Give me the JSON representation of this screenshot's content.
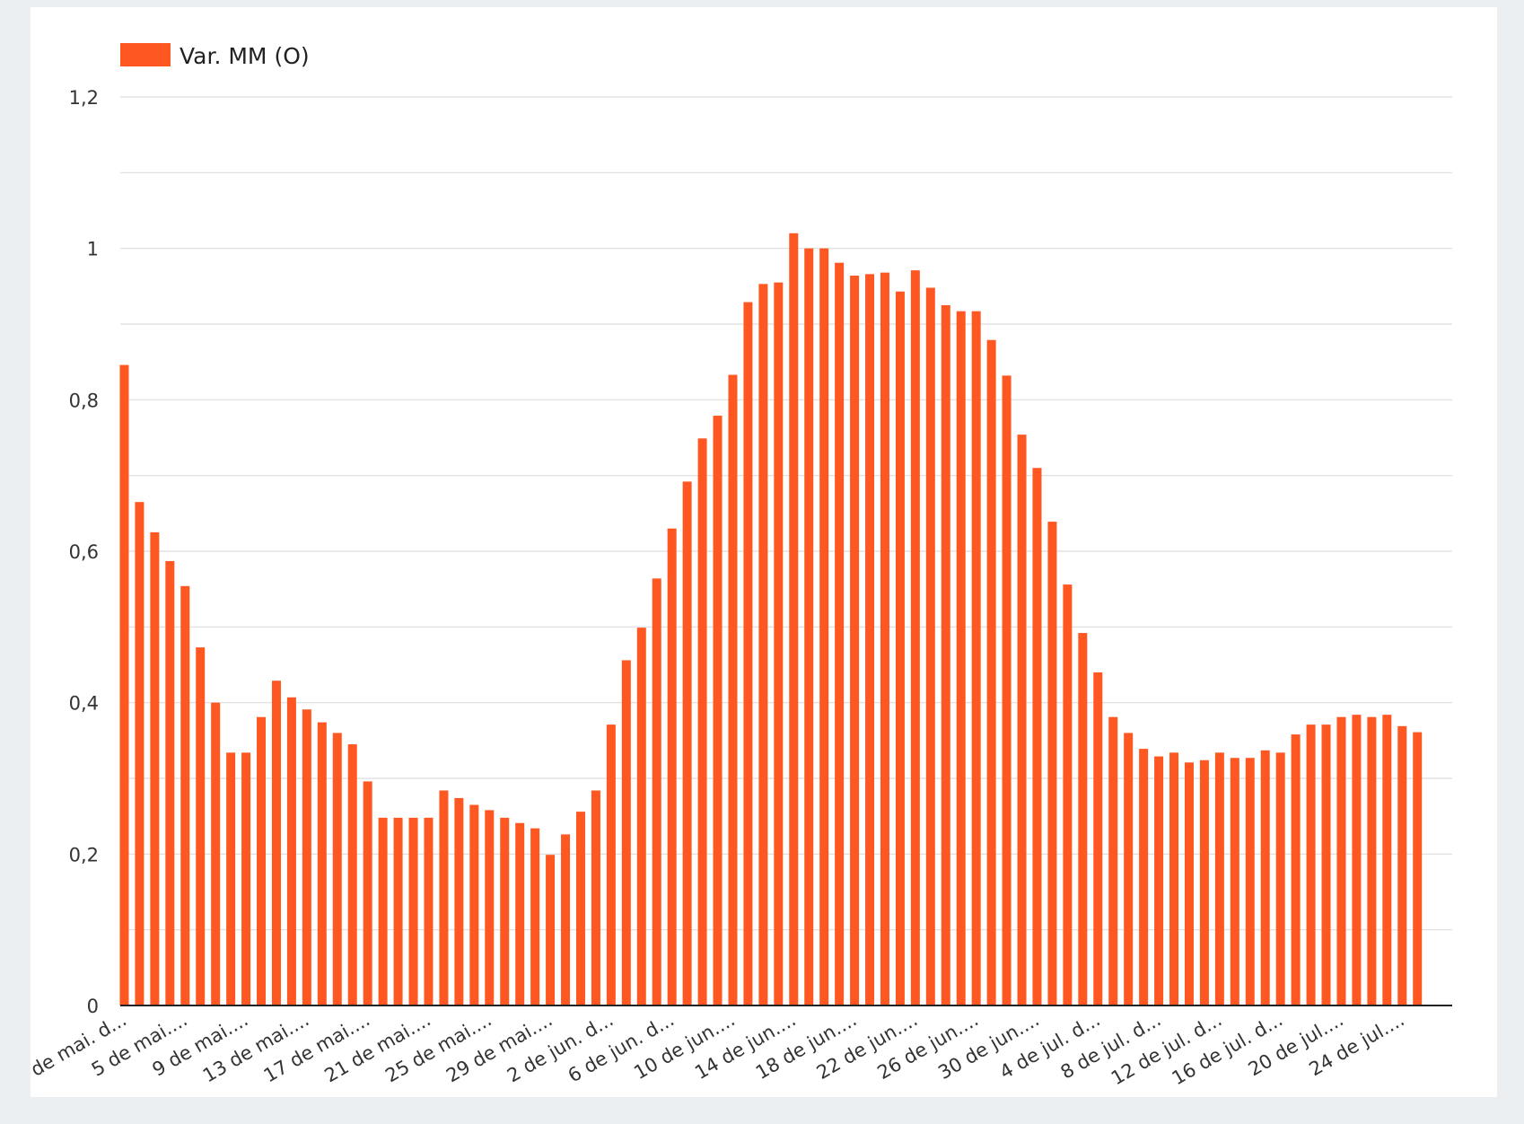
{
  "chart_data": {
    "type": "bar",
    "legend": {
      "position": "top-left",
      "entries": [
        "Var. MM (O)"
      ]
    },
    "series": [
      {
        "name": "Var. MM (O)",
        "color": "#ff5722",
        "values": [
          0.846,
          0.665,
          0.625,
          0.587,
          0.554,
          0.473,
          0.4,
          0.334,
          0.334,
          0.381,
          0.429,
          0.407,
          0.391,
          0.374,
          0.36,
          0.345,
          0.296,
          0.248,
          0.248,
          0.248,
          0.248,
          0.284,
          0.274,
          0.265,
          0.258,
          0.248,
          0.241,
          0.234,
          0.199,
          0.226,
          0.256,
          0.284,
          0.371,
          0.456,
          0.499,
          0.564,
          0.63,
          0.692,
          0.749,
          0.779,
          0.833,
          0.929,
          0.953,
          0.955,
          1.02,
          1.0,
          1.0,
          0.981,
          0.964,
          0.966,
          0.968,
          0.943,
          0.971,
          0.948,
          0.925,
          0.917,
          0.917,
          0.879,
          0.832,
          0.754,
          0.71,
          0.639,
          0.556,
          0.492,
          0.44,
          0.381,
          0.36,
          0.339,
          0.329,
          0.334,
          0.321,
          0.324,
          0.334,
          0.327,
          0.327,
          0.337,
          0.334,
          0.358,
          0.371,
          0.371,
          0.381,
          0.384,
          0.381,
          0.384,
          0.369,
          0.361
        ]
      }
    ],
    "x_tick_labels": [
      "de mai. d...",
      "5 de mai....",
      "9 de mai....",
      "13 de mai....",
      "17 de mai....",
      "21 de mai....",
      "25 de mai....",
      "29 de mai....",
      "2 de jun. d...",
      "6 de jun. d...",
      "10 de jun....",
      "14 de jun....",
      "18 de jun....",
      "22 de jun....",
      "26 de jun....",
      "30 de jun....",
      "4 de jul. d...",
      "8 de jul. d...",
      "12 de jul. d...",
      "16 de jul. d...",
      "20 de jul....",
      "24 de jul...."
    ],
    "x_tick_every": 4,
    "y_tick_labels": [
      "0",
      "0,2",
      "0,4",
      "0,6",
      "0,8",
      "1",
      "1,2"
    ],
    "y_ticks": [
      0,
      0.2,
      0.4,
      0.6,
      0.8,
      1.0,
      1.2
    ],
    "ylim": [
      0,
      1.2
    ],
    "minor_grid_step": 0.1,
    "grid": true,
    "title": "",
    "xlabel": "",
    "ylabel": ""
  }
}
